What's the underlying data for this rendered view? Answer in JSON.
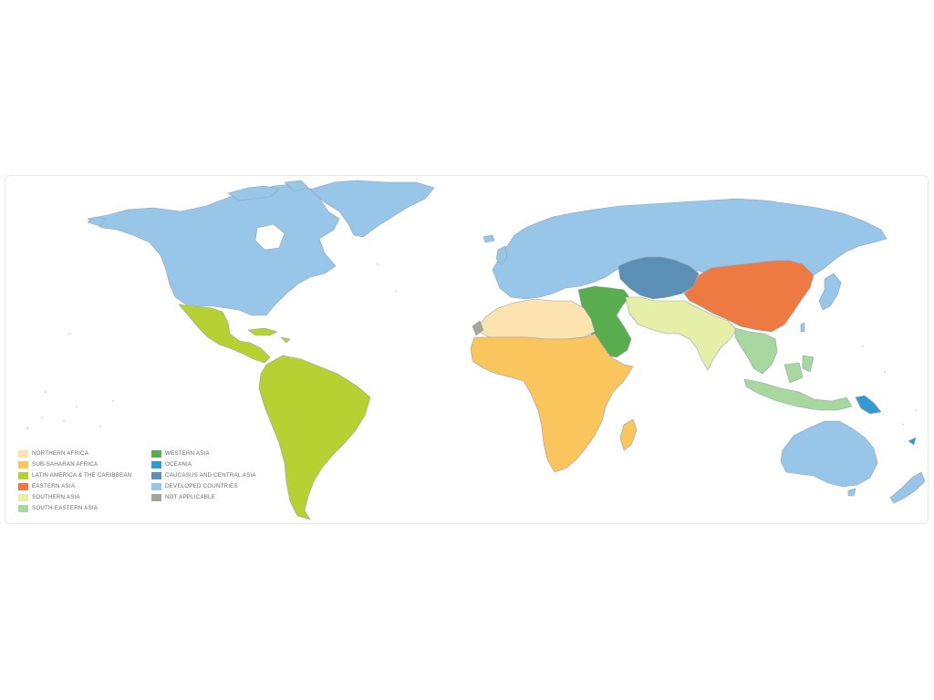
{
  "legend": {
    "items": [
      {
        "label": "NORTHERN AFRICA",
        "color": "#fde3b0"
      },
      {
        "label": "SUB-SAHARAN AFRICA",
        "color": "#fbc55d"
      },
      {
        "label": "LATIN AMERICA & THE CARIBBEAN",
        "color": "#b8d132"
      },
      {
        "label": "EASTERN ASIA",
        "color": "#ee7a43"
      },
      {
        "label": "SOUTHERN ASIA",
        "color": "#e6efa8"
      },
      {
        "label": "SOUTH-EASTERN ASIA",
        "color": "#a9d7a0"
      },
      {
        "label": "WESTERN ASIA",
        "color": "#5aad4e"
      },
      {
        "label": "OCEANIA",
        "color": "#3399d4"
      },
      {
        "label": "CAUCASUS AND CENTRAL ASIA",
        "color": "#5b8fb6"
      },
      {
        "label": "DEVELOPED COUNTRIES",
        "color": "#98c6e8"
      },
      {
        "label": "NOT APPLICABLE",
        "color": "#a4a49c"
      }
    ]
  }
}
